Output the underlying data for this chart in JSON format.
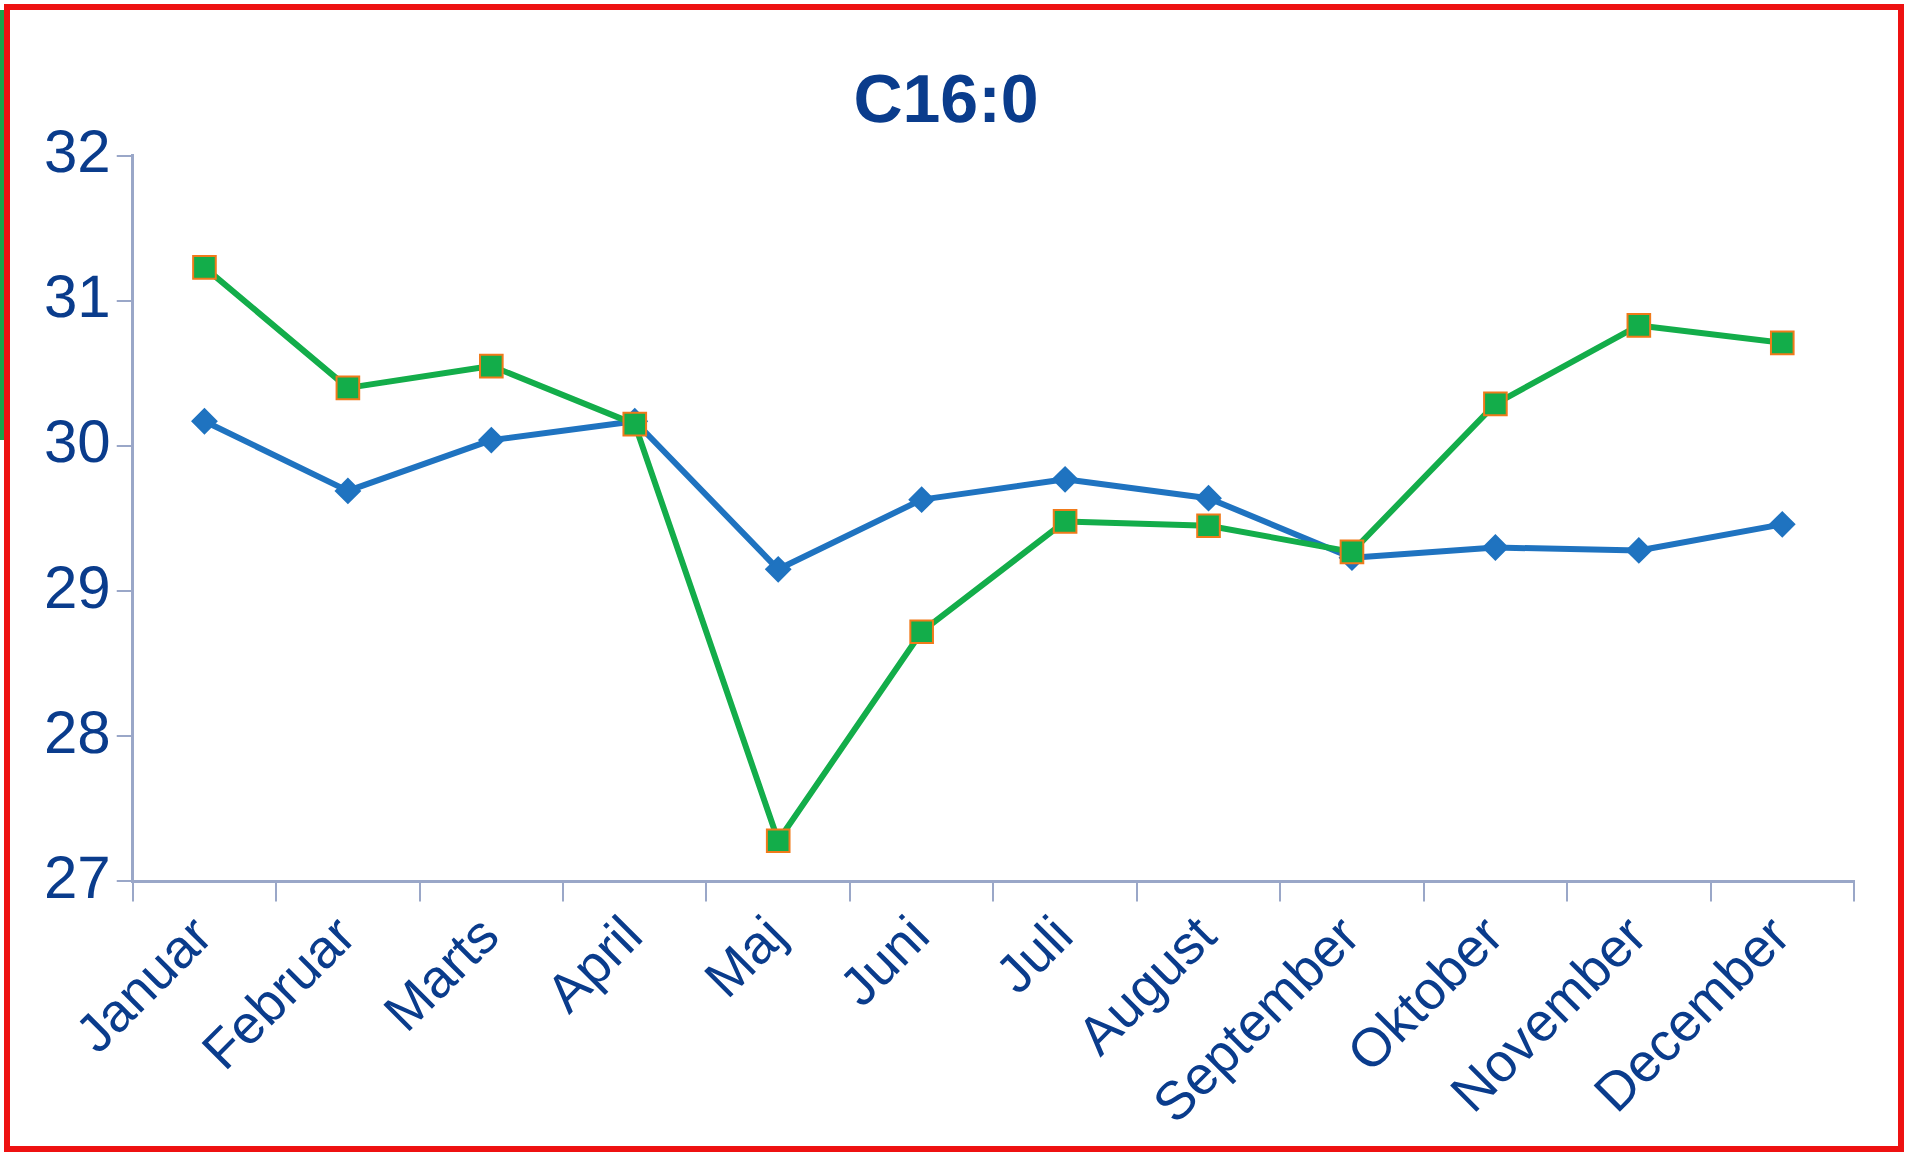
{
  "chart_data": {
    "type": "line",
    "title": "C16:0",
    "categories": [
      "Januar",
      "Februar",
      "Marts",
      "April",
      "Maj",
      "Juni",
      "Juli",
      "August",
      "September",
      "Oktober",
      "November",
      "December"
    ],
    "series": [
      {
        "color": "#1f73c0",
        "marker": "diamond",
        "values": [
          30.17,
          29.69,
          30.04,
          30.17,
          29.15,
          29.63,
          29.77,
          29.64,
          29.23,
          29.3,
          29.28,
          29.46
        ]
      },
      {
        "color": "#13ad4a",
        "marker": "square",
        "values": [
          31.23,
          30.4,
          30.55,
          30.15,
          27.28,
          28.72,
          29.48,
          29.45,
          29.27,
          30.29,
          30.83,
          30.71
        ]
      }
    ],
    "ylim": [
      27,
      32
    ],
    "yticks": [
      27,
      28,
      29,
      30,
      31,
      32
    ],
    "grid": false,
    "legend": false,
    "line_style": "solid"
  }
}
